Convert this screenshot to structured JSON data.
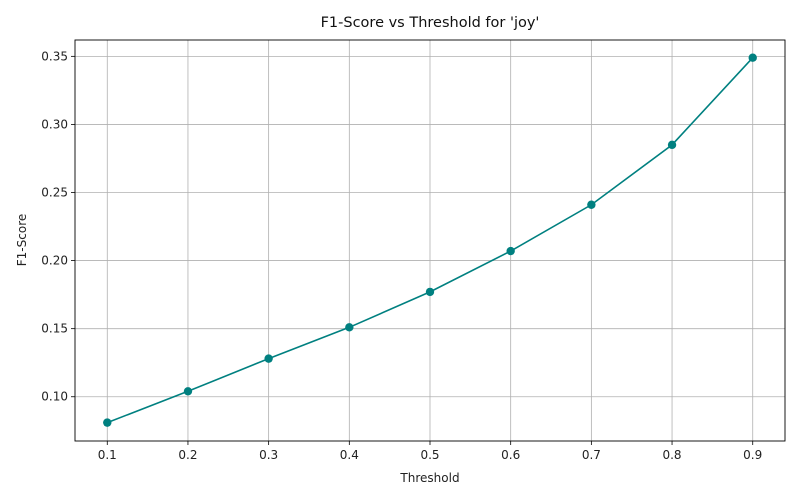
{
  "chart_data": {
    "type": "line",
    "title": "F1-Score vs Threshold for 'joy'",
    "xlabel": "Threshold",
    "ylabel": "F1-Score",
    "x": [
      0.1,
      0.2,
      0.3,
      0.4,
      0.5,
      0.6,
      0.7,
      0.8,
      0.9
    ],
    "series": [
      {
        "values": [
          0.081,
          0.104,
          0.128,
          0.151,
          0.177,
          0.207,
          0.241,
          0.285,
          0.349
        ]
      }
    ],
    "xlim": [
      0.06,
      0.94
    ],
    "ylim": [
      0.0675,
      0.362
    ],
    "x_ticks": [
      0.1,
      0.2,
      0.3,
      0.4,
      0.5,
      0.6,
      0.7,
      0.8,
      0.9
    ],
    "x_tick_labels": [
      "0.1",
      "0.2",
      "0.3",
      "0.4",
      "0.5",
      "0.6",
      "0.7",
      "0.8",
      "0.9"
    ],
    "y_ticks": [
      0.1,
      0.15,
      0.2,
      0.25,
      0.3,
      0.35
    ],
    "y_tick_labels": [
      "0.10",
      "0.15",
      "0.20",
      "0.25",
      "0.30",
      "0.35"
    ],
    "grid": true,
    "legend": "none",
    "colors": {
      "series": "#008080",
      "grid": "#b0b0b0",
      "axis": "#000000"
    }
  }
}
